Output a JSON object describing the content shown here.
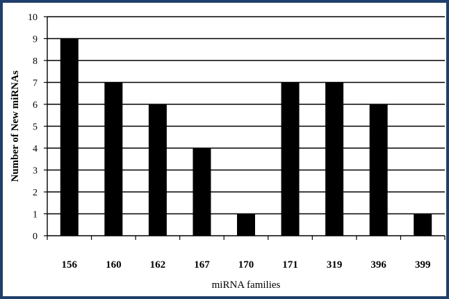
{
  "chart_data": {
    "type": "bar",
    "categories": [
      "156",
      "160",
      "162",
      "167",
      "170",
      "171",
      "319",
      "396",
      "399"
    ],
    "values": [
      9,
      7,
      6,
      4,
      1,
      7,
      7,
      6,
      1
    ],
    "xlabel": "miRNA families",
    "ylabel": "Number of New miRNAs",
    "ylim": [
      0,
      10
    ],
    "yticks": [
      0,
      1,
      2,
      3,
      4,
      5,
      6,
      7,
      8,
      9,
      10
    ],
    "grid": true,
    "bar_color": "#000000",
    "frame_color": "#1f3f6e"
  }
}
